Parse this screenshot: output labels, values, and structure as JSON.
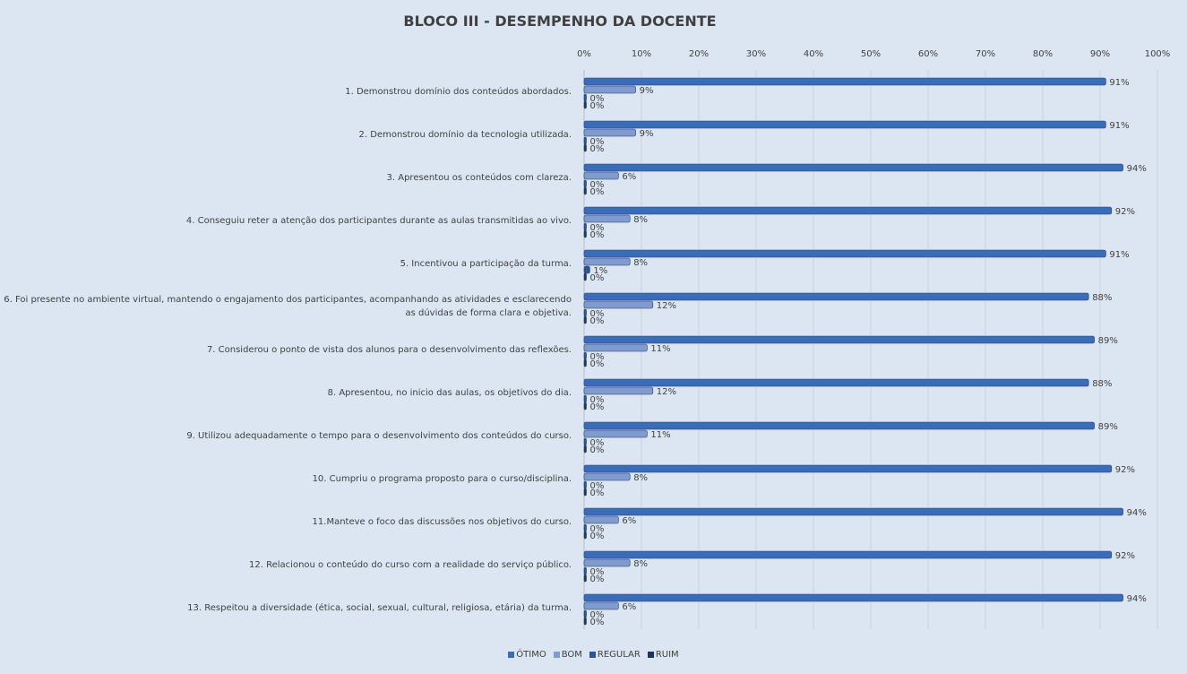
{
  "chart_data": {
    "type": "bar",
    "orientation": "horizontal",
    "title": "BLOCO III - DESEMPENHO  DA DOCENTE",
    "xlim": [
      0,
      100
    ],
    "x_ticks": [
      "0%",
      "10%",
      "20%",
      "30%",
      "40%",
      "50%",
      "60%",
      "70%",
      "80%",
      "90%",
      "100%"
    ],
    "legend_position": "bottom",
    "categories": [
      "1. Demonstrou domínio dos conteúdos abordados.",
      "2. Demonstrou domínio da tecnologia utilizada.",
      "3. Apresentou os conteúdos com clareza.",
      "4. Conseguiu reter a atenção dos participantes durante as aulas transmitidas ao vivo.",
      "5. Incentivou a participação da turma.",
      "6. Foi presente no ambiente virtual, mantendo o engajamento dos participantes, acompanhando as atividades e esclarecendo as dúvidas de forma clara e objetiva.",
      "7. Considerou o ponto de vista dos alunos para o desenvolvimento das reflexões.",
      "8. Apresentou, no inicio das aulas, os objetivos do dia.",
      "9. Utilizou adequadamente o tempo para o desenvolvimento dos conteúdos do curso.",
      "10. Cumpriu o programa proposto para o curso/disciplina.",
      "11.Manteve o foco das discussões nos objetivos do curso.",
      "12. Relacionou o conteúdo do curso com a realidade do serviço público.",
      "13. Respeitou a diversidade (ética, social, sexual, cultural, religiosa, etária) da turma."
    ],
    "series": [
      {
        "name": "ÓTIMO",
        "color": "#3a6cba",
        "values": [
          91,
          91,
          94,
          92,
          91,
          88,
          89,
          88,
          89,
          92,
          94,
          92,
          94
        ]
      },
      {
        "name": "BOM",
        "color": "#7f9bd0",
        "values": [
          9,
          9,
          6,
          8,
          8,
          12,
          11,
          12,
          11,
          8,
          6,
          8,
          6
        ]
      },
      {
        "name": "REGULAR",
        "color": "#2a5699",
        "values": [
          0,
          0,
          0,
          0,
          1,
          0,
          0,
          0,
          0,
          0,
          0,
          0,
          0
        ]
      },
      {
        "name": "RUIM",
        "color": "#1f3558",
        "values": [
          0,
          0,
          0,
          0,
          0,
          0,
          0,
          0,
          0,
          0,
          0,
          0,
          0
        ]
      }
    ]
  }
}
